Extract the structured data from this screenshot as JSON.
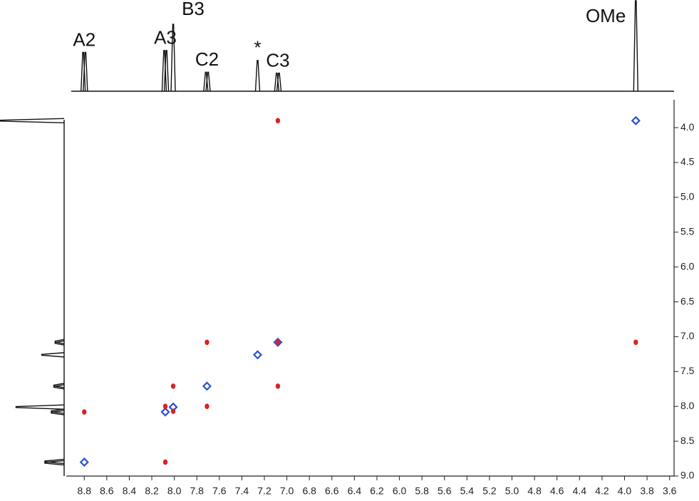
{
  "chart_data": {
    "type": "nmr2d",
    "xlim": [
      8.96,
      3.56
    ],
    "ylim": [
      3.6,
      9.0
    ],
    "xticks": [
      8.8,
      8.6,
      8.4,
      8.2,
      {
        "value": 8,
        "label": "8.0"
      },
      7.8,
      7.6,
      7.4,
      7.2,
      {
        "value": 7,
        "label": "7.0"
      },
      6.8,
      6.6,
      6.4,
      6.2,
      {
        "value": 6,
        "label": "6.0"
      },
      5.8,
      5.6,
      5.4,
      5.2,
      {
        "value": 5,
        "label": "5.0"
      },
      4.8,
      4.6,
      4.4,
      4.2,
      {
        "value": 4,
        "label": "4.0"
      },
      3.8,
      3.6
    ],
    "yticks": [
      {
        "value": 4,
        "label": "4.0"
      },
      4.5,
      {
        "value": 5,
        "label": "5.0"
      },
      5.5,
      {
        "value": 6,
        "label": "6.0"
      },
      6.5,
      {
        "value": 7,
        "label": "7.0"
      },
      7.5,
      {
        "value": 8,
        "label": "8.0"
      },
      8.5,
      {
        "value": 9,
        "label": "9.0"
      }
    ],
    "peaks": [
      {
        "label": "A2",
        "x": [
          8.81,
          8.79
        ],
        "height_top": 43,
        "height_left": 30
      },
      {
        "label": "A3",
        "x": [
          8.09,
          8.07
        ],
        "height_top": 45,
        "height_left": 20
      },
      {
        "label": "B3",
        "x": [
          8.01
        ],
        "height_top": 74,
        "height_left": 75
      },
      {
        "label": "C2",
        "x": [
          7.72,
          7.7
        ],
        "height_top": 21,
        "height_left": 16
      },
      {
        "label": "*",
        "x": [
          7.26
        ],
        "height_top": 34,
        "height_left": 35
      },
      {
        "label": "C3",
        "x": [
          7.09,
          7.07
        ],
        "height_top": 20,
        "height_left": 14
      },
      {
        "label": "OMe",
        "x": [
          3.9
        ],
        "height_top": 100,
        "height_left": 100
      }
    ],
    "series": [
      {
        "color": "#2a50d8",
        "x": [
          8.8,
          8.08,
          8.01,
          7.71,
          7.26,
          7.08,
          3.9
        ],
        "values": [
          8.8,
          8.08,
          8.01,
          7.71,
          7.26,
          7.08,
          3.9
        ]
      },
      {
        "color": "#d62424",
        "x": [
          8.8,
          8.08,
          8.08,
          8.01,
          8.01,
          7.71,
          7.71,
          7.08,
          7.08,
          7.08,
          3.9
        ],
        "values": [
          8.08,
          8.8,
          8.0,
          8.07,
          7.71,
          8.0,
          7.08,
          7.71,
          3.9,
          7.08,
          7.08
        ]
      }
    ]
  }
}
